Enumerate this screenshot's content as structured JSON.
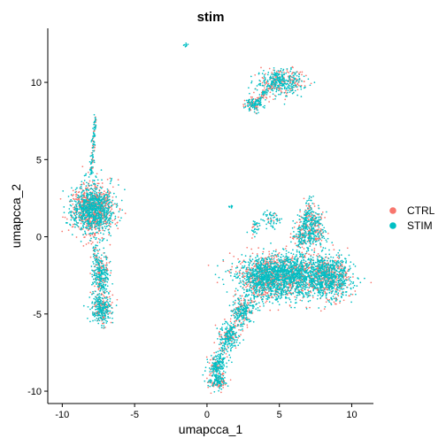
{
  "chart_data": {
    "type": "scatter",
    "title": "stim",
    "xlabel": "umapcca_1",
    "ylabel": "umapcca_2",
    "xlim": [
      -11,
      11.5
    ],
    "ylim": [
      -10.8,
      13.5
    ],
    "x_ticks": [
      -10,
      -5,
      0,
      5,
      10
    ],
    "y_ticks": [
      -10,
      -5,
      0,
      5,
      10
    ],
    "x_tick_labels": [
      "-10",
      "-5",
      "0",
      "5",
      "10"
    ],
    "y_tick_labels": [
      "-10",
      "-5",
      "0",
      "5",
      "10"
    ],
    "grid": false,
    "legend_position": "right",
    "series": [
      {
        "name": "CTRL",
        "color": "#F8766D"
      },
      {
        "name": "STIM",
        "color": "#00BFC4"
      }
    ],
    "clusters": [
      {
        "center": [
          -7.9,
          1.8
        ],
        "spread": [
          0.95,
          1.05
        ],
        "n": 1500,
        "ctrl_frac": 0.45
      },
      {
        "center": [
          -7.3,
          -2.4
        ],
        "spread": [
          0.45,
          0.9
        ],
        "n": 260,
        "ctrl_frac": 0.4
      },
      {
        "center": [
          -7.3,
          -4.7
        ],
        "spread": [
          0.5,
          0.65
        ],
        "n": 320,
        "ctrl_frac": 0.35
      },
      {
        "center": [
          5.2,
          10.0
        ],
        "spread": [
          1.0,
          0.55
        ],
        "n": 420,
        "ctrl_frac": 0.35
      },
      {
        "center": [
          3.2,
          8.6
        ],
        "spread": [
          0.4,
          0.3
        ],
        "n": 120,
        "ctrl_frac": 0.4
      },
      {
        "center": [
          5.5,
          -2.5
        ],
        "spread": [
          2.1,
          0.95
        ],
        "n": 2100,
        "ctrl_frac": 0.35
      },
      {
        "center": [
          8.5,
          -2.6
        ],
        "spread": [
          1.0,
          0.9
        ],
        "n": 800,
        "ctrl_frac": 0.35
      },
      {
        "center": [
          3.8,
          -2.8
        ],
        "spread": [
          0.8,
          0.9
        ],
        "n": 500,
        "ctrl_frac": 0.4
      },
      {
        "center": [
          2.5,
          -4.8
        ],
        "spread": [
          0.5,
          0.6
        ],
        "n": 220,
        "ctrl_frac": 0.35
      },
      {
        "center": [
          1.5,
          -6.5
        ],
        "spread": [
          0.45,
          0.6
        ],
        "n": 200,
        "ctrl_frac": 0.3
      },
      {
        "center": [
          0.7,
          -8.3
        ],
        "spread": [
          0.35,
          0.5
        ],
        "n": 160,
        "ctrl_frac": 0.3
      },
      {
        "center": [
          0.7,
          -9.3
        ],
        "spread": [
          0.45,
          0.35
        ],
        "n": 180,
        "ctrl_frac": 0.35
      },
      {
        "center": [
          7.2,
          1.0
        ],
        "spread": [
          0.55,
          0.7
        ],
        "n": 230,
        "ctrl_frac": 0.35
      },
      {
        "center": [
          7.0,
          0.1
        ],
        "spread": [
          0.8,
          0.5
        ],
        "n": 220,
        "ctrl_frac": 0.4
      },
      {
        "center": [
          4.4,
          1.1
        ],
        "spread": [
          0.35,
          0.35
        ],
        "n": 60,
        "ctrl_frac": 0.2
      },
      {
        "center": [
          3.3,
          0.7
        ],
        "spread": [
          0.25,
          0.3
        ],
        "n": 35,
        "ctrl_frac": 0.2
      },
      {
        "center": [
          1.6,
          2.0
        ],
        "spread": [
          0.1,
          0.1
        ],
        "n": 8,
        "ctrl_frac": 0.0
      },
      {
        "center": [
          -1.4,
          12.4
        ],
        "spread": [
          0.1,
          0.08
        ],
        "n": 12,
        "ctrl_frac": 0.0
      }
    ],
    "filaments": [
      {
        "from": [
          -7.7,
          7.9
        ],
        "to": [
          -8.0,
          4.1
        ],
        "n": 120,
        "width": 0.12,
        "ctrl_frac": 0.3
      },
      {
        "from": [
          -7.8,
          -0.6
        ],
        "to": [
          -7.3,
          -3.6
        ],
        "n": 90,
        "width": 0.25,
        "ctrl_frac": 0.35
      },
      {
        "from": [
          7.2,
          2.6
        ],
        "to": [
          6.3,
          -0.8
        ],
        "n": 90,
        "width": 0.25,
        "ctrl_frac": 0.35
      },
      {
        "from": [
          3.2,
          8.3
        ],
        "to": [
          5.0,
          10.6
        ],
        "n": 110,
        "width": 0.25,
        "ctrl_frac": 0.3
      },
      {
        "from": [
          2.8,
          -4.0
        ],
        "to": [
          0.8,
          -8.0
        ],
        "n": 120,
        "width": 0.35,
        "ctrl_frac": 0.3
      }
    ]
  }
}
